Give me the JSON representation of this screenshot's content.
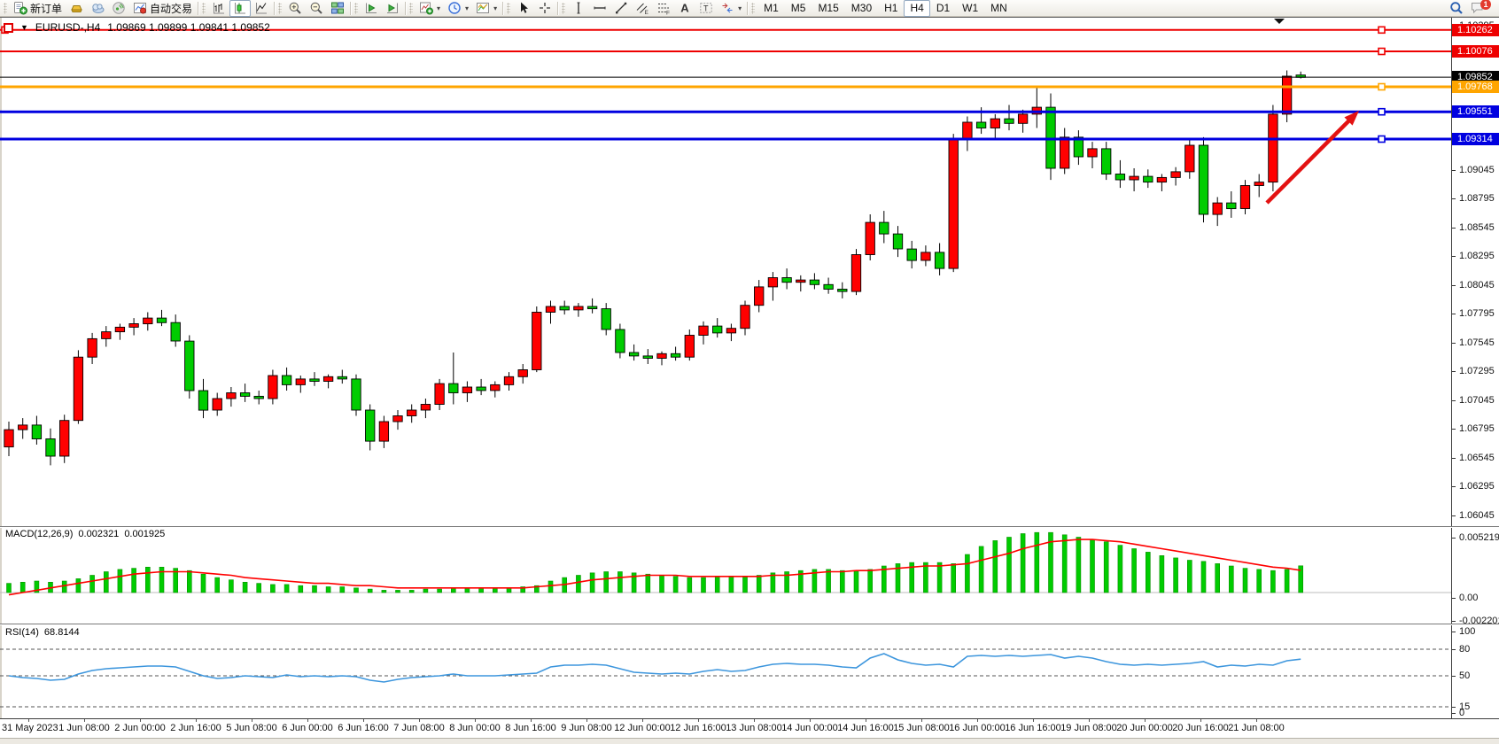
{
  "toolbar": {
    "groups": [
      {
        "items": [
          {
            "name": "new-order-button",
            "icon": "new-order",
            "label": "新订单"
          },
          {
            "name": "gold-button",
            "icon": "gold-bar"
          },
          {
            "name": "history-center-button",
            "icon": "cloud"
          },
          {
            "name": "signals-button",
            "icon": "signal"
          },
          {
            "name": "autotrading-button",
            "icon": "autotrade",
            "label": "自动交易"
          }
        ]
      },
      {
        "items": [
          {
            "name": "bar-chart-button",
            "icon": "bar-chart"
          },
          {
            "name": "candlestick-chart-button",
            "icon": "candle-chart",
            "active": true
          },
          {
            "name": "line-chart-button",
            "icon": "line-chart"
          }
        ]
      },
      {
        "items": [
          {
            "name": "zoom-in-button",
            "icon": "zoom-in"
          },
          {
            "name": "zoom-out-button",
            "icon": "zoom-out"
          },
          {
            "name": "tile-windows-button",
            "icon": "tile-windows"
          }
        ]
      },
      {
        "items": [
          {
            "name": "auto-scroll-button",
            "icon": "auto-scroll"
          },
          {
            "name": "chart-shift-button",
            "icon": "chart-shift"
          }
        ]
      },
      {
        "items": [
          {
            "name": "indicators-button",
            "icon": "indicators",
            "caret": true
          },
          {
            "name": "periods-button",
            "icon": "clock",
            "caret": true
          },
          {
            "name": "templates-button",
            "icon": "template",
            "caret": true
          }
        ]
      },
      {
        "items": [
          {
            "name": "cursor-button",
            "icon": "cursor"
          },
          {
            "name": "crosshair-button",
            "icon": "crosshair"
          }
        ]
      },
      {
        "items": [
          {
            "name": "vertical-line-button",
            "icon": "vline"
          },
          {
            "name": "horizontal-line-button",
            "icon": "hline"
          },
          {
            "name": "trendline-button",
            "icon": "trendline"
          },
          {
            "name": "equidistant-channel-button",
            "icon": "channel"
          },
          {
            "name": "fibonacci-button",
            "icon": "fibonacci"
          },
          {
            "name": "text-button",
            "icon": "text"
          },
          {
            "name": "text-label-button",
            "icon": "text-label"
          },
          {
            "name": "arrows-button",
            "icon": "arrows",
            "caret": true
          }
        ]
      },
      {
        "kind": "tf",
        "items": [
          {
            "name": "tf-m1-button",
            "label": "M1"
          },
          {
            "name": "tf-m5-button",
            "label": "M5"
          },
          {
            "name": "tf-m15-button",
            "label": "M15"
          },
          {
            "name": "tf-m30-button",
            "label": "M30"
          },
          {
            "name": "tf-h1-button",
            "label": "H1"
          },
          {
            "name": "tf-h4-button",
            "label": "H4",
            "active": true
          },
          {
            "name": "tf-d1-button",
            "label": "D1"
          },
          {
            "name": "tf-w1-button",
            "label": "W1"
          },
          {
            "name": "tf-mn-button",
            "label": "MN"
          }
        ]
      },
      {
        "right": true,
        "items": [
          {
            "name": "search-button",
            "icon": "search"
          },
          {
            "name": "notifications-button",
            "icon": "chat",
            "badge": "1"
          }
        ]
      }
    ]
  },
  "chart": {
    "title": "EURUSD-,H4",
    "ohlc": "1.09869 1.09899 1.09841 1.09852"
  },
  "chart_data": {
    "type": "candlestick",
    "symbol": "EURUSD-",
    "timeframe": "H4",
    "up_color": "#ff0000",
    "down_color": "#00cc00",
    "candles": [
      [
        1.0664,
        1.0686,
        1.0656,
        1.0679
      ],
      [
        1.0679,
        1.0689,
        1.0671,
        1.0683
      ],
      [
        1.0683,
        1.0691,
        1.0666,
        1.0671
      ],
      [
        1.0671,
        1.068,
        1.0648,
        1.0656
      ],
      [
        1.0656,
        1.0692,
        1.065,
        1.0687
      ],
      [
        1.0687,
        1.0748,
        1.0684,
        1.0742
      ],
      [
        1.0742,
        1.0763,
        1.0736,
        1.0758
      ],
      [
        1.0758,
        1.0769,
        1.0751,
        1.0764
      ],
      [
        1.0764,
        1.0771,
        1.0757,
        1.0768
      ],
      [
        1.0768,
        1.0776,
        1.0761,
        1.0771
      ],
      [
        1.0771,
        1.0781,
        1.0765,
        1.0776
      ],
      [
        1.0776,
        1.0783,
        1.0769,
        1.0772
      ],
      [
        1.0772,
        1.0779,
        1.0751,
        1.0756
      ],
      [
        1.0756,
        1.0761,
        1.0706,
        1.0713
      ],
      [
        1.0713,
        1.0723,
        1.0689,
        1.0696
      ],
      [
        1.0696,
        1.0711,
        1.0691,
        1.0706
      ],
      [
        1.0706,
        1.0716,
        1.0699,
        1.0711
      ],
      [
        1.0711,
        1.0719,
        1.0703,
        1.0708
      ],
      [
        1.0708,
        1.0713,
        1.0701,
        1.0706
      ],
      [
        1.0706,
        1.0731,
        1.0701,
        1.0726
      ],
      [
        1.0726,
        1.0733,
        1.0713,
        1.0718
      ],
      [
        1.0718,
        1.0726,
        1.0711,
        1.0723
      ],
      [
        1.0723,
        1.0729,
        1.0717,
        1.0721
      ],
      [
        1.0721,
        1.0727,
        1.0715,
        1.0725
      ],
      [
        1.0725,
        1.0731,
        1.0719,
        1.0723
      ],
      [
        1.0723,
        1.0727,
        1.0691,
        1.0696
      ],
      [
        1.0696,
        1.0701,
        1.0661,
        1.0669
      ],
      [
        1.0669,
        1.0691,
        1.0663,
        1.0686
      ],
      [
        1.0686,
        1.0696,
        1.0679,
        1.0691
      ],
      [
        1.0691,
        1.0701,
        1.0685,
        1.0696
      ],
      [
        1.0696,
        1.0706,
        1.0689,
        1.0701
      ],
      [
        1.0701,
        1.0723,
        1.0696,
        1.0719
      ],
      [
        1.0719,
        1.0746,
        1.0701,
        1.0711
      ],
      [
        1.0711,
        1.0721,
        1.0703,
        1.0716
      ],
      [
        1.0716,
        1.0723,
        1.0709,
        1.0713
      ],
      [
        1.0713,
        1.0721,
        1.0707,
        1.0718
      ],
      [
        1.0718,
        1.0729,
        1.0713,
        1.0725
      ],
      [
        1.0725,
        1.0736,
        1.0719,
        1.0731
      ],
      [
        1.0731,
        1.0786,
        1.0729,
        1.0781
      ],
      [
        1.0781,
        1.0791,
        1.0771,
        1.0786
      ],
      [
        1.0786,
        1.0791,
        1.0779,
        1.0783
      ],
      [
        1.0783,
        1.0789,
        1.0777,
        1.0786
      ],
      [
        1.0786,
        1.0793,
        1.078,
        1.0784
      ],
      [
        1.0784,
        1.0789,
        1.0761,
        1.0766
      ],
      [
        1.0766,
        1.0771,
        1.0741,
        1.0746
      ],
      [
        1.0746,
        1.0753,
        1.0739,
        1.0743
      ],
      [
        1.0743,
        1.0749,
        1.0736,
        1.0741
      ],
      [
        1.0741,
        1.0747,
        1.0735,
        1.0745
      ],
      [
        1.0745,
        1.0751,
        1.0739,
        1.0742
      ],
      [
        1.0742,
        1.0766,
        1.0739,
        1.0761
      ],
      [
        1.0761,
        1.0773,
        1.0753,
        1.0769
      ],
      [
        1.0769,
        1.0776,
        1.0759,
        1.0763
      ],
      [
        1.0763,
        1.0771,
        1.0756,
        1.0767
      ],
      [
        1.0767,
        1.0791,
        1.0761,
        1.0787
      ],
      [
        1.0787,
        1.0809,
        1.0781,
        1.0803
      ],
      [
        1.0803,
        1.0816,
        1.0791,
        1.0811
      ],
      [
        1.0811,
        1.0819,
        1.0801,
        1.0807
      ],
      [
        1.0807,
        1.0813,
        1.0799,
        1.0809
      ],
      [
        1.0809,
        1.0815,
        1.0801,
        1.0805
      ],
      [
        1.0805,
        1.0811,
        1.0797,
        1.0801
      ],
      [
        1.0801,
        1.0807,
        1.0793,
        1.0799
      ],
      [
        1.0799,
        1.0836,
        1.0796,
        1.0831
      ],
      [
        1.0831,
        1.0866,
        1.0826,
        1.0859
      ],
      [
        1.0859,
        1.0869,
        1.0841,
        1.0849
      ],
      [
        1.0849,
        1.0856,
        1.0829,
        1.0836
      ],
      [
        1.0836,
        1.0843,
        1.0819,
        1.0826
      ],
      [
        1.0826,
        1.0839,
        1.0821,
        1.0833
      ],
      [
        1.0833,
        1.0841,
        1.0813,
        1.0819
      ],
      [
        1.0819,
        1.0936,
        1.0816,
        1.0931
      ],
      [
        1.0931,
        1.0951,
        1.0921,
        1.0946
      ],
      [
        1.0946,
        1.0959,
        1.0936,
        1.0941
      ],
      [
        1.0941,
        1.0953,
        1.0931,
        1.0949
      ],
      [
        1.0949,
        1.0961,
        1.0939,
        1.0945
      ],
      [
        1.0945,
        1.0957,
        1.0937,
        1.0953
      ],
      [
        1.0953,
        1.0976,
        1.0941,
        1.0959
      ],
      [
        1.0959,
        1.0971,
        1.0896,
        1.0906
      ],
      [
        1.0906,
        1.0941,
        1.0901,
        1.0933
      ],
      [
        1.0933,
        1.0939,
        1.0909,
        1.0916
      ],
      [
        1.0916,
        1.0929,
        1.0906,
        1.0923
      ],
      [
        1.0923,
        1.0929,
        1.0896,
        1.0901
      ],
      [
        1.0901,
        1.0913,
        1.0889,
        1.0896
      ],
      [
        1.0896,
        1.0906,
        1.0886,
        1.0899
      ],
      [
        1.0899,
        1.0905,
        1.0889,
        1.0894
      ],
      [
        1.0894,
        1.0901,
        1.0886,
        1.0898
      ],
      [
        1.0898,
        1.0907,
        1.0891,
        1.0903
      ],
      [
        1.0903,
        1.0931,
        1.0897,
        1.0926
      ],
      [
        1.0926,
        1.0933,
        1.0859,
        1.0866
      ],
      [
        1.0866,
        1.0881,
        1.0856,
        1.0876
      ],
      [
        1.0876,
        1.0886,
        1.0863,
        1.0871
      ],
      [
        1.0871,
        1.0896,
        1.0866,
        1.0891
      ],
      [
        1.0891,
        1.0901,
        1.0881,
        1.0894
      ],
      [
        1.0894,
        1.0961,
        1.0886,
        1.0953
      ],
      [
        1.0953,
        1.0991,
        1.0946,
        1.0986
      ],
      [
        1.0987,
        1.099,
        1.0984,
        1.0985
      ]
    ],
    "x_labels": [
      "31 May 2023",
      "1 Jun 08:00",
      "2 Jun 00:00",
      "2 Jun 16:00",
      "5 Jun 08:00",
      "6 Jun 00:00",
      "6 Jun 16:00",
      "7 Jun 08:00",
      "8 Jun 00:00",
      "8 Jun 16:00",
      "9 Jun 08:00",
      "12 Jun 00:00",
      "12 Jun 16:00",
      "13 Jun 08:00",
      "14 Jun 00:00",
      "14 Jun 16:00",
      "15 Jun 08:00",
      "16 Jun 00:00",
      "16 Jun 16:00",
      "19 Jun 08:00",
      "20 Jun 00:00",
      "20 Jun 16:00",
      "21 Jun 08:00"
    ],
    "y_ticks": [
      "1.10295",
      "1.10045",
      "1.09795",
      "1.09545",
      "1.09295",
      "1.09045",
      "1.08795",
      "1.08545",
      "1.08295",
      "1.08045",
      "1.07795",
      "1.07545",
      "1.07295",
      "1.07045",
      "1.06795",
      "1.06545",
      "1.06295",
      "1.06045"
    ],
    "hlines": [
      {
        "price": 1.10262,
        "color": "#ee0000",
        "width": 2,
        "label": "1.10262"
      },
      {
        "price": 1.10076,
        "color": "#ee0000",
        "width": 2,
        "label": "1.10076"
      },
      {
        "price": 1.09768,
        "color": "#ffa500",
        "width": 3,
        "label": "1.09768"
      },
      {
        "price": 1.09551,
        "color": "#0000e0",
        "width": 3,
        "label": "1.09551"
      },
      {
        "price": 1.09314,
        "color": "#0000e0",
        "width": 3,
        "label": "1.09314"
      }
    ],
    "current_price": {
      "value": 1.09852,
      "label": "1.09852",
      "color": "#000000"
    },
    "macd": {
      "name": "MACD(12,26,9)",
      "value": "0.002321",
      "signal_value": "0.001925",
      "axis_labels": [
        "0.005219",
        "0.00",
        "-0.002201"
      ],
      "hist_color": "#00cc00",
      "signal_color": "#ff0000",
      "histogram": [
        0.0008,
        0.0009,
        0.001,
        0.0009,
        0.001,
        0.0012,
        0.0015,
        0.0018,
        0.002,
        0.0021,
        0.0022,
        0.0022,
        0.0021,
        0.0019,
        0.0016,
        0.0013,
        0.0011,
        0.0009,
        0.0008,
        0.0007,
        0.0007,
        0.0006,
        0.0006,
        0.0005,
        0.0005,
        0.0004,
        0.0003,
        0.0002,
        0.0002,
        0.0002,
        0.0003,
        0.0003,
        0.0004,
        0.0004,
        0.0004,
        0.0004,
        0.0004,
        0.0005,
        0.0006,
        0.001,
        0.0013,
        0.0015,
        0.0017,
        0.0018,
        0.0018,
        0.0017,
        0.0016,
        0.0015,
        0.0014,
        0.0013,
        0.0013,
        0.0014,
        0.0014,
        0.0014,
        0.0015,
        0.0017,
        0.0018,
        0.0019,
        0.002,
        0.002,
        0.0019,
        0.0019,
        0.002,
        0.0023,
        0.0025,
        0.0026,
        0.0026,
        0.0026,
        0.0025,
        0.0033,
        0.004,
        0.0045,
        0.0048,
        0.0051,
        0.0052,
        0.0052,
        0.005,
        0.0048,
        0.0046,
        0.0044,
        0.0041,
        0.0038,
        0.0035,
        0.0032,
        0.003,
        0.0028,
        0.0027,
        0.0025,
        0.0023,
        0.0021,
        0.002,
        0.0019,
        0.002,
        0.002321
      ],
      "signal": [
        -0.0002,
        0.0,
        0.0002,
        0.0004,
        0.0006,
        0.0008,
        0.001,
        0.0012,
        0.0014,
        0.0016,
        0.0017,
        0.0018,
        0.0018,
        0.0018,
        0.0017,
        0.0016,
        0.0015,
        0.0013,
        0.0012,
        0.0011,
        0.001,
        0.0009,
        0.0008,
        0.0008,
        0.0007,
        0.0006,
        0.0006,
        0.0005,
        0.0004,
        0.0004,
        0.0004,
        0.0004,
        0.0004,
        0.0004,
        0.0004,
        0.0004,
        0.0004,
        0.0004,
        0.0005,
        0.0006,
        0.0007,
        0.0009,
        0.0011,
        0.0012,
        0.0013,
        0.0014,
        0.0015,
        0.0015,
        0.0015,
        0.0014,
        0.0014,
        0.0014,
        0.0014,
        0.0014,
        0.0014,
        0.0015,
        0.0015,
        0.0016,
        0.0017,
        0.0018,
        0.0018,
        0.0019,
        0.0019,
        0.002,
        0.0021,
        0.0022,
        0.0023,
        0.0023,
        0.0024,
        0.0025,
        0.0028,
        0.0031,
        0.0034,
        0.0038,
        0.0041,
        0.0044,
        0.0045,
        0.0046,
        0.0046,
        0.0045,
        0.0044,
        0.0042,
        0.004,
        0.0038,
        0.0036,
        0.0034,
        0.0032,
        0.003,
        0.0028,
        0.0026,
        0.0024,
        0.0022,
        0.0021,
        0.001925
      ]
    },
    "rsi": {
      "name": "RSI(14)",
      "value": "68.8144",
      "color": "#3d96dd",
      "levels": [
        80,
        50,
        15
      ],
      "axis_labels": [
        [
          100,
          "100"
        ],
        [
          80,
          "80"
        ],
        [
          50,
          "50"
        ],
        [
          15,
          "15"
        ],
        [
          0,
          "0"
        ]
      ],
      "values": [
        50,
        48,
        47,
        45,
        46,
        52,
        56,
        58,
        59,
        60,
        61,
        61,
        60,
        55,
        50,
        47,
        48,
        50,
        49,
        48,
        51,
        49,
        50,
        49,
        50,
        49,
        45,
        43,
        46,
        48,
        49,
        50,
        52,
        50,
        50,
        50,
        51,
        52,
        53,
        60,
        62,
        62,
        63,
        62,
        58,
        54,
        53,
        52,
        53,
        52,
        55,
        57,
        55,
        56,
        60,
        63,
        64,
        63,
        63,
        62,
        60,
        59,
        70,
        75,
        68,
        64,
        62,
        63,
        60,
        72,
        73,
        72,
        73,
        72,
        73,
        74,
        70,
        72,
        70,
        66,
        63,
        62,
        63,
        62,
        63,
        64,
        66,
        60,
        62,
        61,
        63,
        62,
        67,
        68.8144
      ]
    },
    "annotation": {
      "type": "arrow",
      "color": "#e31212",
      "from": [
        1430,
        228
      ],
      "to": [
        1534,
        124
      ]
    }
  }
}
